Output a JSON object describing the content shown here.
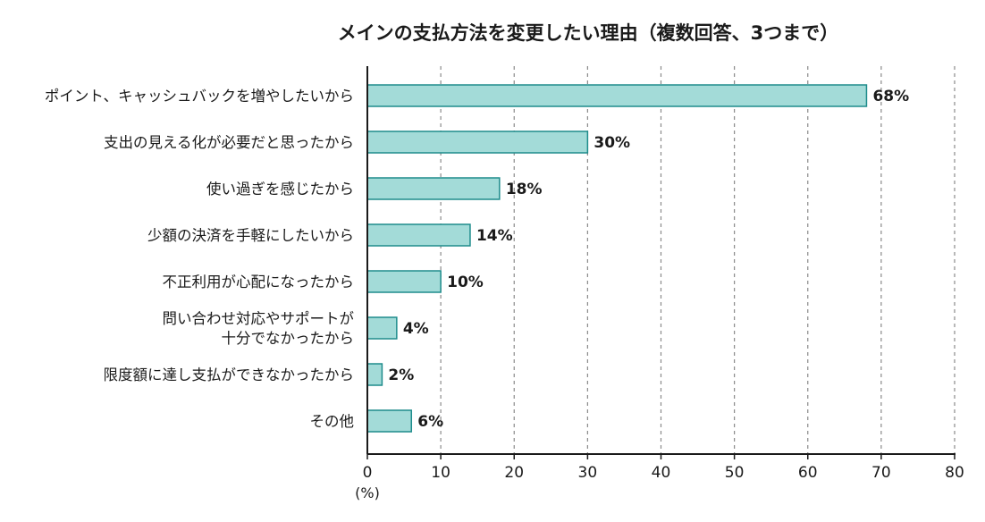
{
  "chart_data": {
    "type": "bar",
    "orientation": "horizontal",
    "title": "メインの支払方法を変更したい理由（複数回答、3つまで）",
    "xlabel": "(%)",
    "ylabel": "",
    "xlim": [
      0,
      80
    ],
    "x_ticks": [
      0,
      10,
      20,
      30,
      40,
      50,
      60,
      70,
      80
    ],
    "grid": "vertical-dashed",
    "bar_color": "#a3dbd8",
    "bar_edge_color": "#1e8c8c",
    "categories": [
      [
        "ポイント、キャッシュバックを増やしたいから"
      ],
      [
        "支出の見える化が必要だと思ったから"
      ],
      [
        "使い過ぎを感じたから"
      ],
      [
        "少額の決済を手軽にしたいから"
      ],
      [
        "不正利用が心配になったから"
      ],
      [
        "問い合わせ対応やサポートが",
        "十分でなかったから"
      ],
      [
        "限度額に達し支払ができなかったから"
      ],
      [
        "その他"
      ]
    ],
    "values": [
      68,
      30,
      18,
      14,
      10,
      4,
      2,
      6
    ],
    "value_labels": [
      "68%",
      "30%",
      "18%",
      "14%",
      "10%",
      "4%",
      "2%",
      "6%"
    ]
  }
}
